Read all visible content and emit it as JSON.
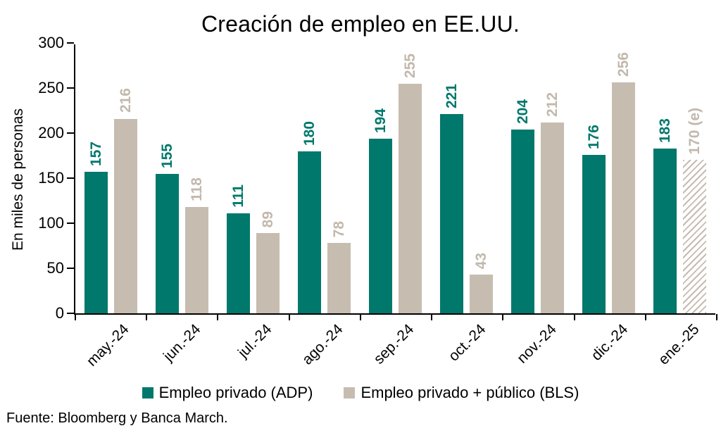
{
  "title": "Creación de empleo en EE.UU.",
  "source_note": "Fuente: Bloomberg y Banca March.",
  "chart_data": {
    "type": "bar",
    "title": "Creación de empleo en EE.UU.",
    "ylabel": "En miles de personas",
    "xlabel": "",
    "ylim": [
      0,
      300
    ],
    "yticks": [
      0,
      50,
      100,
      150,
      200,
      250,
      300
    ],
    "grid": false,
    "legend_position": "bottom",
    "axis_color": "#000000",
    "categories": [
      "may.-24",
      "jun.-24",
      "jul.-24",
      "ago.-24",
      "sep.-24",
      "oct.-24",
      "nov.-24",
      "dic.-24",
      "ene.-25"
    ],
    "series": [
      {
        "name": "Empleo privado (ADP)",
        "color": "#00786C",
        "label_color": "#00786C",
        "values": [
          157,
          155,
          111,
          180,
          194,
          221,
          204,
          176,
          183
        ],
        "labels": [
          "157",
          "155",
          "111",
          "180",
          "194",
          "221",
          "204",
          "176",
          "183"
        ]
      },
      {
        "name": "Empleo privado + público (BLS)",
        "color": "#C6BCB0",
        "label_color": "#C2B8AC",
        "values": [
          216,
          118,
          89,
          78,
          255,
          43,
          212,
          256,
          170
        ],
        "labels": [
          "216",
          "118",
          "89",
          "78",
          "255",
          "43",
          "212",
          "256",
          "170 (e)"
        ],
        "hatched_indices": [
          8
        ],
        "hatch_note": "ene.-25 BLS value is an estimate (e), drawn with diagonal hatching"
      }
    ]
  }
}
